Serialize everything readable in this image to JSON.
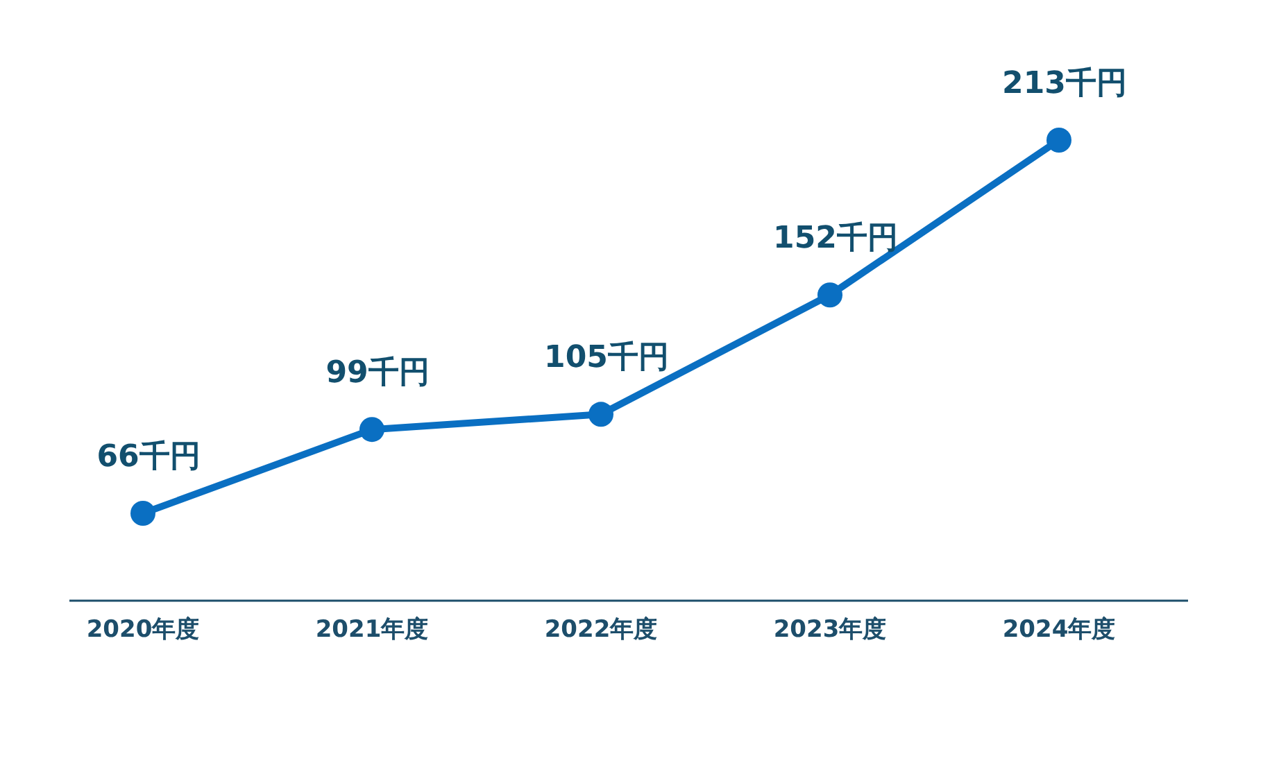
{
  "chart_data": {
    "type": "line",
    "categories": [
      "2020年度",
      "2021年度",
      "2022年度",
      "2023年度",
      "2024年度"
    ],
    "series": [
      {
        "color": "#0a6fc2",
        "values": [
          66,
          99,
          105,
          152,
          213
        ],
        "value_labels": [
          "66千円",
          "99千円",
          "105千円",
          "152千円",
          "213千円"
        ]
      }
    ],
    "marker": "circle",
    "line_style": "solid"
  }
}
